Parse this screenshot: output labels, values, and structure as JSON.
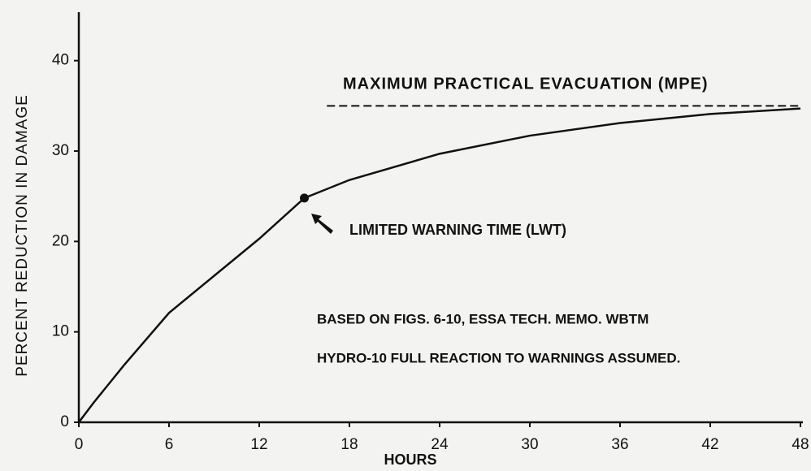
{
  "chart_data": {
    "type": "line",
    "ylabel": "PERCENT REDUCTION IN DAMAGE",
    "xlabel": "HOURS",
    "x": [
      0,
      1,
      3,
      6,
      9,
      12,
      15,
      18,
      24,
      30,
      36,
      42,
      48
    ],
    "values": [
      0,
      2.2,
      6.3,
      12.1,
      16.2,
      20.3,
      24.8,
      26.8,
      29.7,
      31.7,
      33.1,
      34.1,
      34.7
    ],
    "color": "#111111",
    "xlim": [
      0,
      48
    ],
    "xticks": [
      0,
      6,
      12,
      18,
      24,
      30,
      36,
      42,
      48
    ],
    "ylim": [
      0,
      45
    ],
    "yticks": [
      0,
      10,
      20,
      30,
      40
    ],
    "mpe": {
      "label": "MAXIMUM PRACTICAL EVACUATION (MPE)",
      "value": 35,
      "x": [
        16.5,
        48
      ]
    },
    "lwt": {
      "label": "LIMITED WARNING TIME (LWT)",
      "x": 15,
      "y": 24.8
    },
    "notes": [
      "BASED ON FIGS. 6-10, ESSA TECH. MEMO. WBTM",
      "HYDRO-10 FULL REACTION TO WARNINGS ASSUMED."
    ]
  }
}
